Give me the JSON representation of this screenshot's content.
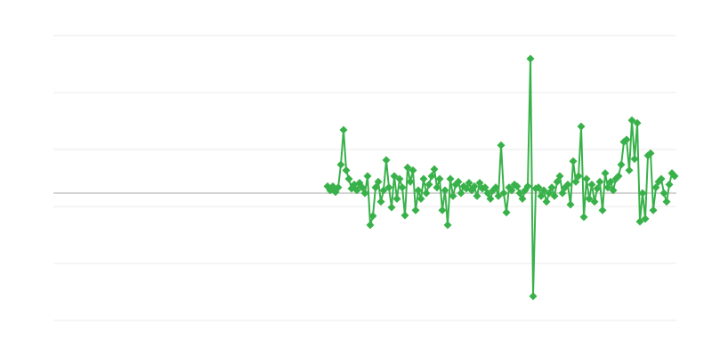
{
  "chart_data": {
    "type": "line",
    "title": "",
    "xlabel": "",
    "ylabel": "",
    "xlim": [
      0,
      700
    ],
    "ylim": [
      -2.234,
      2.766
    ],
    "grid": true,
    "baseline": 0,
    "marker": "diamond",
    "colors": {
      "series": "#39b14a",
      "grid": "#ebebeb",
      "baseline": "#a8a8a8"
    },
    "series": [
      {
        "x": [
          308,
          311,
          314,
          317,
          320,
          323,
          326,
          329,
          332,
          335,
          338,
          341,
          344,
          347,
          350,
          353,
          356,
          359,
          362,
          365,
          368,
          371,
          374,
          377,
          380,
          383,
          386,
          389,
          392,
          395,
          398,
          401,
          404,
          407,
          410,
          413,
          416,
          419,
          422,
          425,
          428,
          431,
          434,
          437,
          440,
          443,
          446,
          449,
          452,
          455,
          458,
          461,
          464,
          467,
          470,
          473,
          476,
          479,
          482,
          485,
          488,
          491,
          494,
          497,
          500,
          503,
          506,
          509,
          512,
          515,
          518,
          521,
          524,
          527,
          530,
          533,
          536,
          539,
          542,
          545,
          548,
          551,
          554,
          557,
          560,
          563,
          566,
          569,
          572,
          575,
          578,
          581,
          584,
          587,
          590,
          593,
          596,
          599,
          602,
          605,
          608,
          611,
          614,
          617,
          620,
          623,
          626,
          629,
          632,
          635,
          638,
          641,
          644,
          647,
          650,
          653,
          656,
          659,
          662,
          665,
          668,
          671,
          674,
          677,
          680,
          683,
          686,
          689,
          692,
          695,
          698
        ],
        "y": [
          0.12,
          0.05,
          0.12,
          0.02,
          0.1,
          0.5,
          1.11,
          0.4,
          0.25,
          0.08,
          0.15,
          0.05,
          0.18,
          0.1,
          0.0,
          0.3,
          -0.56,
          -0.4,
          0.1,
          0.2,
          -0.15,
          0.05,
          0.58,
          0.1,
          -0.25,
          0.3,
          -0.1,
          0.25,
          0.1,
          -0.39,
          0.45,
          0.2,
          0.4,
          -0.3,
          0.05,
          -0.1,
          0.25,
          0.0,
          0.15,
          0.3,
          0.42,
          0.1,
          0.25,
          -0.3,
          0.05,
          -0.56,
          0.25,
          -0.05,
          0.15,
          0.2,
          0.0,
          0.12,
          0.08,
          0.18,
          0.05,
          0.12,
          -0.05,
          0.18,
          0.08,
          0.1,
          0.0,
          -0.1,
          0.05,
          0.1,
          -0.05,
          0.84,
          0.0,
          -0.34,
          0.1,
          0.05,
          0.15,
          0.12,
          0.0,
          -0.1,
          0.05,
          0.12,
          2.36,
          -1.81,
          0.08,
          0.1,
          -0.05,
          0.05,
          -0.15,
          0.0,
          0.1,
          -0.05,
          0.2,
          0.3,
          0.0,
          0.1,
          0.15,
          -0.2,
          0.56,
          0.2,
          0.3,
          1.17,
          -0.42,
          0.25,
          -0.1,
          0.15,
          -0.15,
          0.08,
          0.2,
          -0.3,
          0.35,
          0.1,
          0.2,
          0.05,
          0.25,
          0.3,
          0.5,
          0.9,
          0.94,
          0.4,
          1.28,
          0.6,
          1.23,
          -0.5,
          0.0,
          -0.45,
          0.66,
          0.7,
          -0.3,
          0.1,
          0.2,
          0.25,
          0.0,
          -0.15,
          0.15,
          0.35,
          0.3
        ]
      }
    ]
  }
}
